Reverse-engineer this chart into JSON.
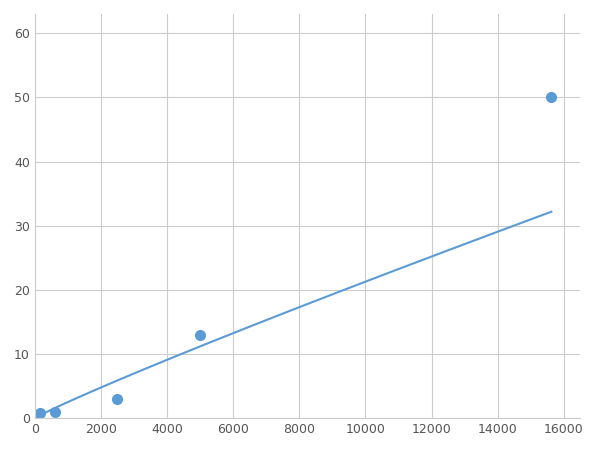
{
  "x_data": [
    156.25,
    625,
    2500,
    5000,
    15625
  ],
  "y_data": [
    0.8,
    1.0,
    3.0,
    13.0,
    50.0
  ],
  "line_color": "#5b9bd5",
  "marker_color": "#5b9bd5",
  "marker_size": 7,
  "line_width": 1.5,
  "xlim": [
    0,
    16500
  ],
  "ylim": [
    0,
    63
  ],
  "xticks": [
    0,
    2000,
    4000,
    6000,
    8000,
    10000,
    12000,
    14000,
    16000
  ],
  "yticks": [
    0,
    10,
    20,
    30,
    40,
    50,
    60
  ],
  "grid_color": "#cccccc",
  "background_color": "#ffffff",
  "fig_width": 6.0,
  "fig_height": 4.5,
  "dpi": 100
}
